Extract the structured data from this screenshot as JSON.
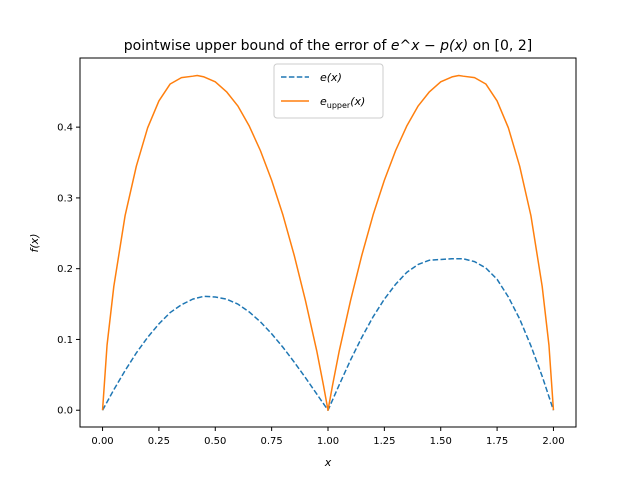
{
  "chart_data": {
    "type": "line",
    "title": {
      "prefix": "pointwise upper bound of the error of ",
      "expr": "e^x − p(x)",
      "suffix": " on [0, 2]"
    },
    "xlabel": "x",
    "ylabel": "f(x)",
    "xlim": [
      -0.1,
      2.1
    ],
    "ylim": [
      -0.0237,
      0.4977
    ],
    "xticks": [
      0.0,
      0.25,
      0.5,
      0.75,
      1.0,
      1.25,
      1.5,
      1.75,
      2.0
    ],
    "xtick_labels": [
      "0.00",
      "0.25",
      "0.50",
      "0.75",
      "1.00",
      "1.25",
      "1.50",
      "1.75",
      "2.00"
    ],
    "yticks": [
      0.0,
      0.1,
      0.2,
      0.3,
      0.4
    ],
    "ytick_labels": [
      "0.0",
      "0.1",
      "0.2",
      "0.3",
      "0.4"
    ],
    "grid": false,
    "legend_position": "top-center",
    "series": [
      {
        "name": "e(x)",
        "color": "#1f77b4",
        "style": "dashed",
        "x": [
          0.0,
          0.05,
          0.1,
          0.15,
          0.2,
          0.25,
          0.3,
          0.35,
          0.4,
          0.45,
          0.5,
          0.55,
          0.6,
          0.65,
          0.7,
          0.75,
          0.8,
          0.85,
          0.9,
          0.95,
          1.0,
          1.05,
          1.1,
          1.15,
          1.2,
          1.25,
          1.3,
          1.35,
          1.4,
          1.45,
          1.5,
          1.55,
          1.6,
          1.65,
          1.7,
          1.75,
          1.8,
          1.85,
          1.9,
          1.95,
          2.0
        ],
        "y": [
          0.0,
          0.029,
          0.056,
          0.081,
          0.103,
          0.122,
          0.138,
          0.149,
          0.157,
          0.161,
          0.16,
          0.157,
          0.15,
          0.139,
          0.125,
          0.108,
          0.089,
          0.068,
          0.046,
          0.023,
          0.0,
          0.036,
          0.071,
          0.103,
          0.132,
          0.157,
          0.178,
          0.195,
          0.206,
          0.212,
          0.213,
          0.214,
          0.214,
          0.21,
          0.201,
          0.185,
          0.16,
          0.129,
          0.091,
          0.048,
          0.0
        ]
      },
      {
        "name": "e_upper(x)",
        "label_base": "e",
        "label_sub": "upper",
        "label_tail": "(x)",
        "color": "#ff7f0e",
        "style": "solid",
        "x": [
          0.0,
          0.02,
          0.05,
          0.1,
          0.15,
          0.2,
          0.25,
          0.3,
          0.35,
          0.4,
          0.42,
          0.45,
          0.5,
          0.55,
          0.6,
          0.65,
          0.7,
          0.75,
          0.8,
          0.85,
          0.9,
          0.95,
          0.98,
          1.0,
          1.02,
          1.05,
          1.1,
          1.15,
          1.2,
          1.25,
          1.3,
          1.35,
          1.4,
          1.45,
          1.5,
          1.55,
          1.58,
          1.6,
          1.65,
          1.7,
          1.75,
          1.8,
          1.85,
          1.9,
          1.95,
          1.98,
          2.0
        ],
        "y": [
          0.0,
          0.092,
          0.175,
          0.275,
          0.345,
          0.399,
          0.437,
          0.461,
          0.47,
          0.472,
          0.473,
          0.471,
          0.464,
          0.45,
          0.43,
          0.402,
          0.367,
          0.325,
          0.276,
          0.219,
          0.155,
          0.084,
          0.035,
          0.0,
          0.035,
          0.084,
          0.155,
          0.219,
          0.276,
          0.325,
          0.367,
          0.402,
          0.43,
          0.45,
          0.464,
          0.471,
          0.473,
          0.472,
          0.47,
          0.461,
          0.437,
          0.399,
          0.345,
          0.275,
          0.175,
          0.092,
          0.0
        ]
      }
    ]
  }
}
